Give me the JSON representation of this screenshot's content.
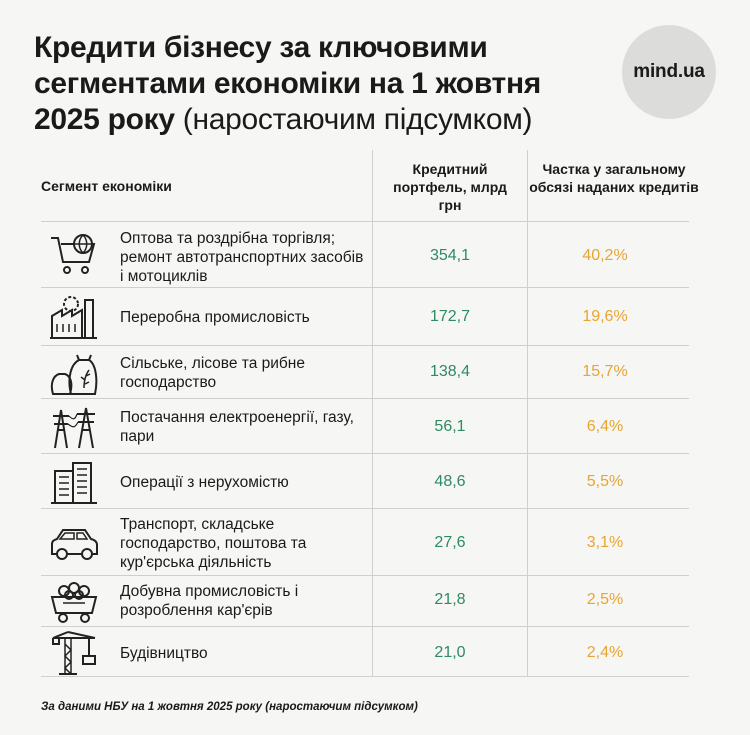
{
  "title": {
    "bold": "Кредити бізнесу за ключовими сегментами економіки на 1 жовтня 2025 року",
    "light": " (наростаючим підсумком)"
  },
  "logo": "mind.ua",
  "headers": {
    "segment": "Сегмент економіки",
    "portfolio": "Кредитний портфель, млрд грн",
    "share": "Частка у загальному обсязі наданих кредитів"
  },
  "rows": [
    {
      "icon": "shopping-cart-globe-icon",
      "label": "Оптова та роздрібна торгівля; ремонт автотранспортних засобів і мотоциклів",
      "value": "354,1",
      "share": "40,2%"
    },
    {
      "icon": "factory-icon",
      "label": "Переробна промисловість",
      "value": "172,7",
      "share": "19,6%"
    },
    {
      "icon": "grain-sacks-icon",
      "label": "Сільське, лісове та рибне господарство",
      "value": "138,4",
      "share": "15,7%"
    },
    {
      "icon": "power-pylons-icon",
      "label": "Постачання електроенергії, газу, пари",
      "value": "56,1",
      "share": "6,4%"
    },
    {
      "icon": "buildings-icon",
      "label": "Операції з нерухомістю",
      "value": "48,6",
      "share": "5,5%"
    },
    {
      "icon": "car-icon",
      "label": "Транспорт, складське господарство, поштова та кур'єрська діяльність",
      "value": "27,6",
      "share": "3,1%"
    },
    {
      "icon": "mine-cart-icon",
      "label": "Добувна промисловість і розроблення кар'єрів",
      "value": "21,8",
      "share": "2,5%"
    },
    {
      "icon": "tower-crane-icon",
      "label": "Будівництво",
      "value": "21,0",
      "share": "2,4%"
    }
  ],
  "footnote": "За даними НБУ на 1 жовтня 2025 року (наростаючим підсумком)",
  "colors": {
    "value": "#2e8a63",
    "share": "#e8a532",
    "background": "#f6f6f4"
  }
}
